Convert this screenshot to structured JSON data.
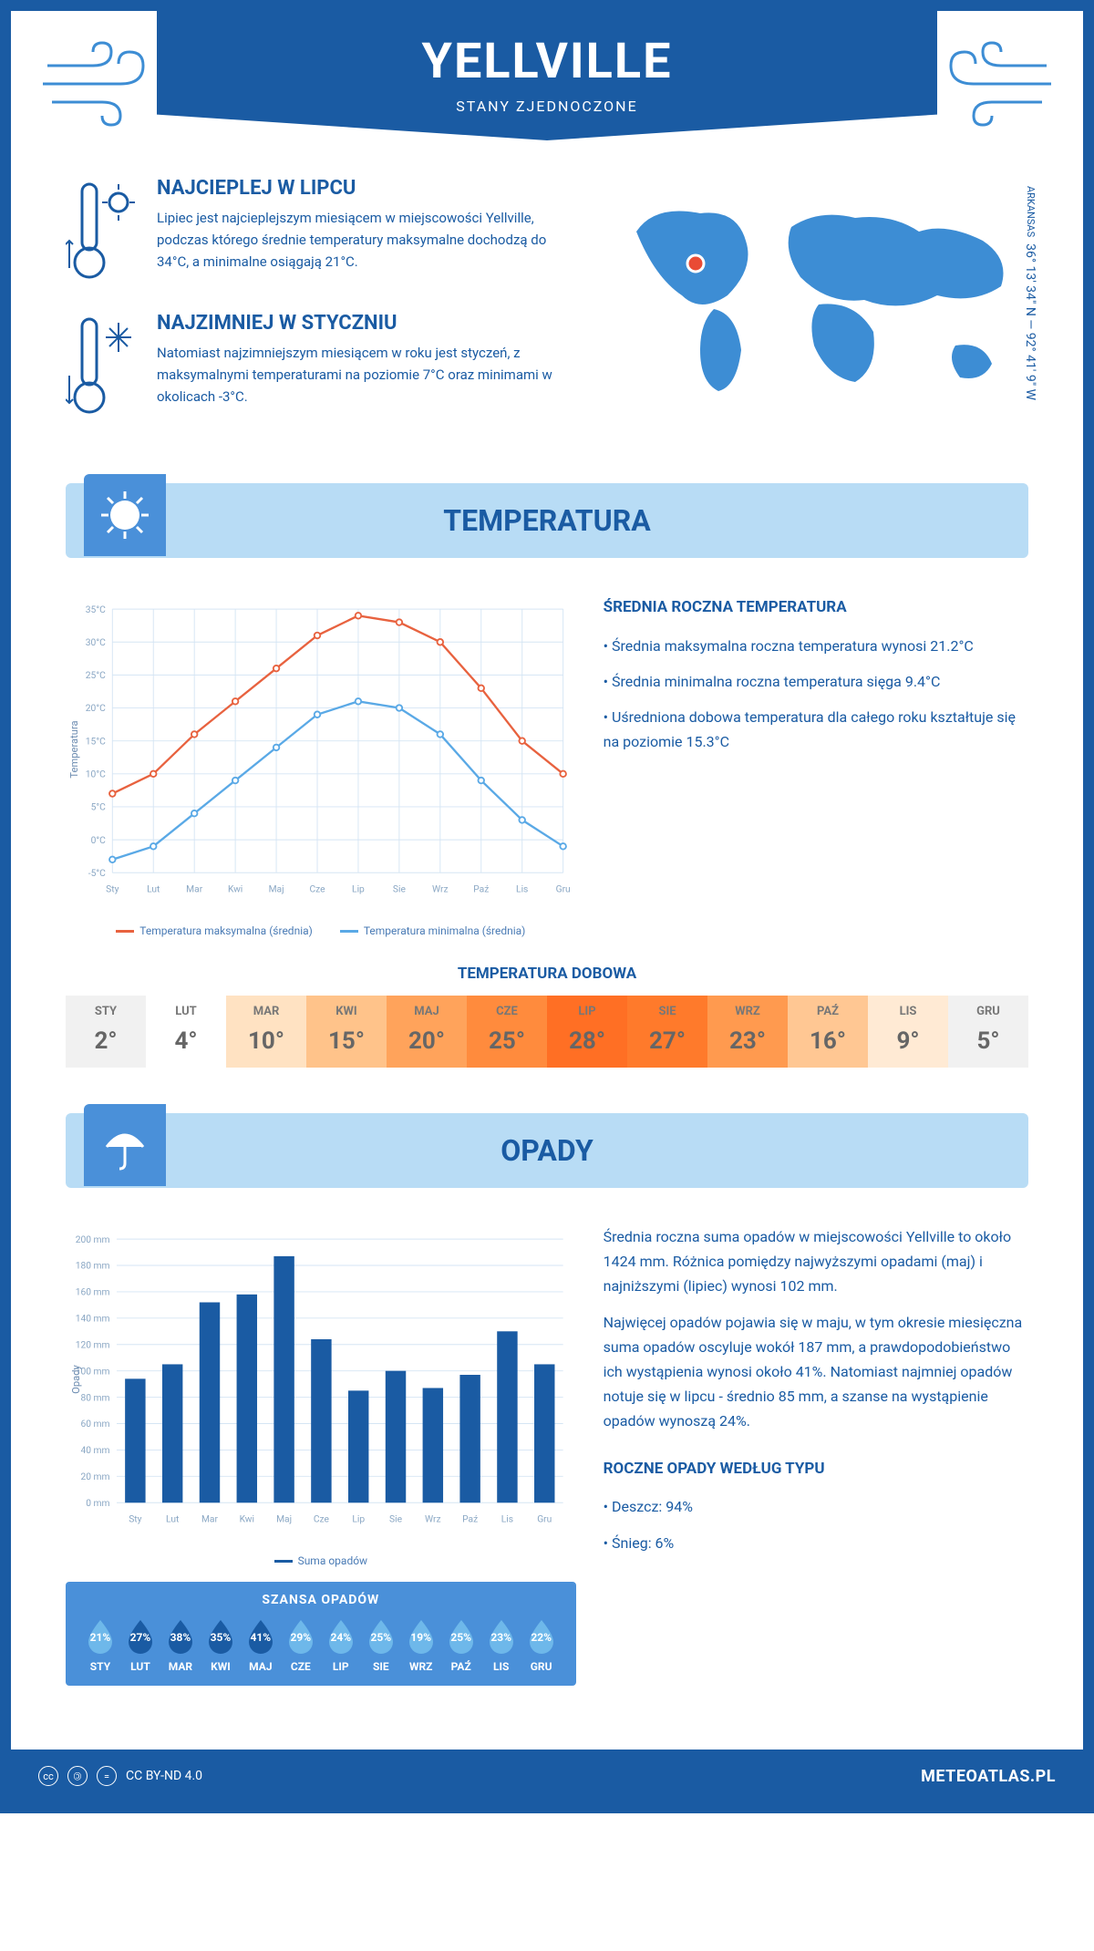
{
  "header": {
    "city": "YELLVILLE",
    "country": "STANY ZJEDNOCZONE"
  },
  "location": {
    "region": "ARKANSAS",
    "coords": "36° 13' 34\" N — 92° 41' 9\" W",
    "marker_color": "#e94b35",
    "map_color": "#3d8dd4"
  },
  "intro": {
    "hot": {
      "title": "NAJCIEPLEJ W LIPCU",
      "text": "Lipiec jest najcieplejszym miesiącem w miejscowości Yellville, podczas którego średnie temperatury maksymalne dochodzą do 34°C, a minimalne osiągają 21°C."
    },
    "cold": {
      "title": "NAJZIMNIEJ W STYCZNIU",
      "text": "Natomiast najzimniejszym miesiącem w roku jest styczeń, z maksymalnymi temperaturami na poziomie 7°C oraz minimami w okolicach -3°C."
    }
  },
  "colors": {
    "primary": "#1a5ba3",
    "light_band": "#b8dcf5",
    "accent_block": "#4a90d9",
    "line_max": "#e8623f",
    "line_min": "#5aa9e6",
    "bar_fill": "#1a5ba3",
    "grid": "#d5e5f4"
  },
  "temperature": {
    "section_title": "TEMPERATURA",
    "chart": {
      "type": "line",
      "y_label": "Temperatura",
      "months": [
        "Sty",
        "Lut",
        "Mar",
        "Kwi",
        "Maj",
        "Cze",
        "Lip",
        "Sie",
        "Wrz",
        "Paź",
        "Lis",
        "Gru"
      ],
      "ylim": [
        -5,
        35
      ],
      "ytick_step": 5,
      "ytick_suffix": "°C",
      "series": {
        "max": {
          "label": "Temperatura maksymalna (średnia)",
          "color": "#e8623f",
          "values": [
            7,
            10,
            16,
            21,
            26,
            31,
            34,
            33,
            30,
            23,
            15,
            10
          ]
        },
        "min": {
          "label": "Temperatura minimalna (średnia)",
          "color": "#5aa9e6",
          "values": [
            -3,
            -1,
            4,
            9,
            14,
            19,
            21,
            20,
            16,
            9,
            3,
            -1
          ]
        }
      }
    },
    "annual": {
      "title": "ŚREDNIA ROCZNA TEMPERATURA",
      "bullets": [
        "• Średnia maksymalna roczna temperatura wynosi 21.2°C",
        "• Średnia minimalna roczna temperatura sięga 9.4°C",
        "• Uśredniona dobowa temperatura dla całego roku kształtuje się na poziomie 15.3°C"
      ]
    },
    "daily": {
      "title": "TEMPERATURA DOBOWA",
      "months": [
        "STY",
        "LUT",
        "MAR",
        "KWI",
        "MAJ",
        "CZE",
        "LIP",
        "SIE",
        "WRZ",
        "PAŹ",
        "LIS",
        "GRU"
      ],
      "values": [
        "2°",
        "4°",
        "10°",
        "15°",
        "20°",
        "25°",
        "28°",
        "27°",
        "23°",
        "16°",
        "9°",
        "5°"
      ],
      "cell_colors": [
        "#f1f1f1",
        "#ffffff",
        "#ffe2c2",
        "#ffc38a",
        "#ffa35b",
        "#ff8b3d",
        "#ff6f24",
        "#ff7a2b",
        "#ff9a4f",
        "#ffc793",
        "#ffead4",
        "#f1f1f1"
      ]
    }
  },
  "precipitation": {
    "section_title": "OPADY",
    "chart": {
      "type": "bar",
      "y_label": "Opady",
      "months": [
        "Sty",
        "Lut",
        "Mar",
        "Kwi",
        "Maj",
        "Cze",
        "Lip",
        "Sie",
        "Wrz",
        "Paź",
        "Lis",
        "Gru"
      ],
      "ylim": [
        0,
        200
      ],
      "ytick_step": 20,
      "ytick_suffix": " mm",
      "bars": {
        "label": "Suma opadów",
        "color": "#1a5ba3",
        "values": [
          94,
          105,
          152,
          158,
          187,
          124,
          85,
          100,
          87,
          97,
          130,
          105
        ]
      }
    },
    "text": {
      "p1": "Średnia roczna suma opadów w miejscowości Yellville to około 1424 mm. Różnica pomiędzy najwyższymi opadami (maj) i najniższymi (lipiec) wynosi 102 mm.",
      "p2": "Najwięcej opadów pojawia się w maju, w tym okresie miesięczna suma opadów oscyluje wokół 187 mm, a prawdopodobieństwo ich wystąpienia wynosi około 41%. Natomiast najmniej opadów notuje się w lipcu - średnio 85 mm, a szanse na wystąpienie opadów wynoszą 24%."
    },
    "chance": {
      "title": "SZANSA OPADÓW",
      "months": [
        "STY",
        "LUT",
        "MAR",
        "KWI",
        "MAJ",
        "CZE",
        "LIP",
        "SIE",
        "WRZ",
        "PAŹ",
        "LIS",
        "GRU"
      ],
      "values": [
        "21%",
        "27%",
        "38%",
        "35%",
        "41%",
        "29%",
        "24%",
        "25%",
        "19%",
        "25%",
        "23%",
        "22%"
      ],
      "drop_colors": [
        "#6eb8ea",
        "#1a5ba3",
        "#1a5ba3",
        "#1a5ba3",
        "#1a5ba3",
        "#6eb8ea",
        "#6eb8ea",
        "#6eb8ea",
        "#6eb8ea",
        "#6eb8ea",
        "#6eb8ea",
        "#6eb8ea"
      ]
    },
    "by_type": {
      "title": "ROCZNE OPADY WEDŁUG TYPU",
      "bullets": [
        "• Deszcz: 94%",
        "• Śnieg: 6%"
      ]
    }
  },
  "footer": {
    "license": "CC BY-ND 4.0",
    "site": "METEOATLAS.PL"
  }
}
